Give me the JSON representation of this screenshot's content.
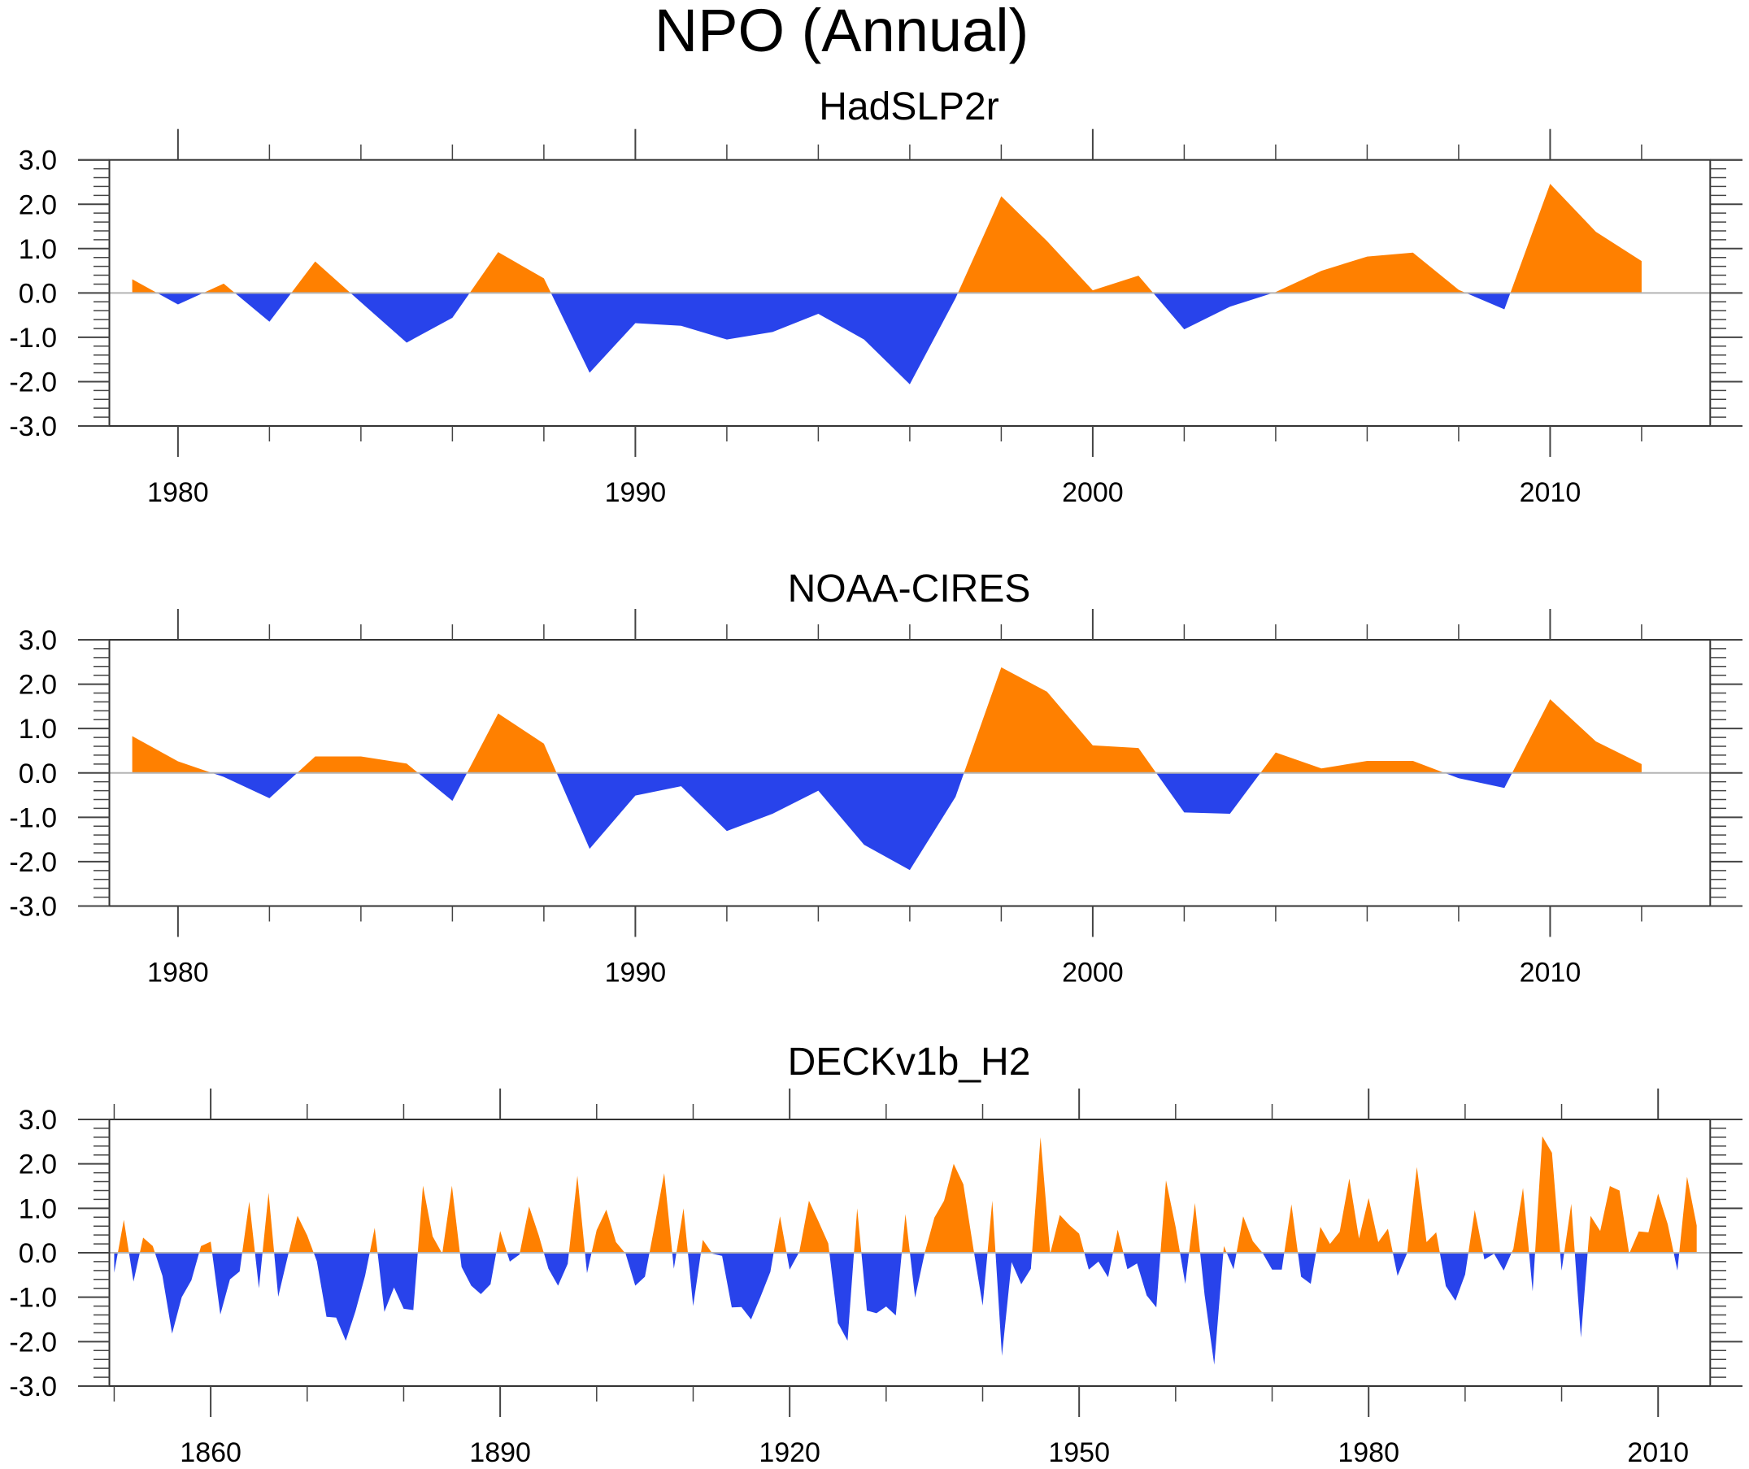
{
  "title": "NPO (Annual)",
  "colors": {
    "positive": "#ff8000",
    "negative": "#2843eb",
    "zero_line": "#b4b4b4",
    "axis": "#000000"
  },
  "chart_data": [
    {
      "type": "area",
      "title": "HadSLP2r",
      "xlabel": "",
      "ylabel": "",
      "xlim": [
        1978.5,
        2013.5
      ],
      "ylim": [
        -3.0,
        3.0
      ],
      "x_major_ticks": [
        1980,
        1990,
        2000,
        2010
      ],
      "x_tick_labels": [
        "1980",
        "1990",
        "2000",
        "2010"
      ],
      "x_minor_step": 2,
      "y_major_ticks": [
        3.0,
        2.0,
        1.0,
        0.0,
        -1.0,
        -2.0,
        -3.0
      ],
      "y_tick_labels": [
        "3.0",
        "2.0",
        "1.0",
        "0.0",
        "-1.0",
        "-2.0",
        "-3.0"
      ],
      "y_minor_step": 0.2,
      "grid": false,
      "reference_line": 0.0,
      "x_start": 1979,
      "values": [
        0.31,
        -0.26,
        0.21,
        -0.65,
        0.71,
        -0.21,
        -1.12,
        -0.56,
        0.92,
        0.33,
        -1.8,
        -0.68,
        -0.74,
        -1.05,
        -0.88,
        -0.47,
        -1.05,
        -2.06,
        -0.12,
        2.18,
        1.17,
        0.06,
        0.39,
        -0.82,
        -0.31,
        0.02,
        0.5,
        0.82,
        0.91,
        0.07,
        -0.37,
        2.46,
        1.38,
        0.72
      ]
    },
    {
      "type": "area",
      "title": "NOAA-CIRES",
      "xlabel": "",
      "ylabel": "",
      "xlim": [
        1978.5,
        2013.5
      ],
      "ylim": [
        -3.0,
        3.0
      ],
      "x_major_ticks": [
        1980,
        1990,
        2000,
        2010
      ],
      "x_tick_labels": [
        "1980",
        "1990",
        "2000",
        "2010"
      ],
      "x_minor_step": 2,
      "y_major_ticks": [
        3.0,
        2.0,
        1.0,
        0.0,
        -1.0,
        -2.0,
        -3.0
      ],
      "y_tick_labels": [
        "3.0",
        "2.0",
        "1.0",
        "0.0",
        "-1.0",
        "-2.0",
        "-3.0"
      ],
      "y_minor_step": 0.2,
      "grid": false,
      "reference_line": 0.0,
      "x_start": 1979,
      "values": [
        0.83,
        0.26,
        -0.09,
        -0.57,
        0.37,
        0.37,
        0.21,
        -0.63,
        1.34,
        0.66,
        -1.71,
        -0.51,
        -0.3,
        -1.31,
        -0.92,
        -0.4,
        -1.62,
        -2.19,
        -0.54,
        2.38,
        1.83,
        0.62,
        0.56,
        -0.89,
        -0.92,
        0.46,
        0.1,
        0.27,
        0.27,
        -0.12,
        -0.34,
        1.66,
        0.71,
        0.2
      ]
    },
    {
      "type": "area",
      "title": "DECKv1b_H2",
      "xlabel": "",
      "ylabel": "",
      "xlim": [
        1849.5,
        2015.4
      ],
      "ylim": [
        -3.0,
        3.0
      ],
      "x_major_ticks": [
        1860,
        1890,
        1920,
        1950,
        1980,
        2010
      ],
      "x_tick_labels": [
        "1860",
        "1890",
        "1920",
        "1950",
        "1980",
        "2010"
      ],
      "x_minor_step": 10,
      "y_major_ticks": [
        3.0,
        2.0,
        1.0,
        0.0,
        -1.0,
        -2.0,
        -3.0
      ],
      "y_tick_labels": [
        "3.0",
        "2.0",
        "1.0",
        "0.0",
        "-1.0",
        "-2.0",
        "-3.0"
      ],
      "y_minor_step": 0.2,
      "grid": false,
      "reference_line": 0.0,
      "x_start": 1850,
      "values": [
        -0.45,
        0.74,
        -0.65,
        0.34,
        0.15,
        -0.52,
        -1.82,
        -1.0,
        -0.62,
        0.15,
        0.25,
        -1.39,
        -0.6,
        -0.42,
        1.15,
        -0.8,
        1.35,
        -0.99,
        -0.07,
        0.83,
        0.39,
        -0.19,
        -1.44,
        -1.46,
        -1.98,
        -1.32,
        -0.52,
        0.56,
        -1.33,
        -0.78,
        -1.26,
        -1.29,
        1.51,
        0.37,
        -0.02,
        1.51,
        -0.32,
        -0.74,
        -0.93,
        -0.71,
        0.49,
        -0.2,
        -0.04,
        1.04,
        0.39,
        -0.36,
        -0.74,
        -0.25,
        1.73,
        -0.46,
        0.51,
        0.97,
        0.24,
        -0.02,
        -0.74,
        -0.54,
        0.6,
        1.79,
        -0.36,
        1.0,
        -1.2,
        0.29,
        -0.02,
        -0.07,
        -1.23,
        -1.22,
        -1.5,
        -0.98,
        -0.43,
        0.82,
        -0.38,
        0.02,
        1.17,
        0.7,
        0.21,
        -1.58,
        -1.98,
        1.0,
        -1.3,
        -1.36,
        -1.21,
        -1.41,
        0.87,
        -1.01,
        0.0,
        0.79,
        1.17,
        2.0,
        1.54,
        0.15,
        -1.19,
        1.17,
        -2.32,
        -0.21,
        -0.71,
        -0.36,
        2.6,
        -0.02,
        0.85,
        0.62,
        0.43,
        -0.38,
        -0.2,
        -0.55,
        0.52,
        -0.37,
        -0.24,
        -0.96,
        -1.23,
        1.63,
        0.58,
        -0.7,
        1.12,
        -0.95,
        -2.52,
        0.15,
        -0.37,
        0.82,
        0.26,
        0.0,
        -0.38,
        -0.38,
        1.09,
        -0.54,
        -0.7,
        0.58,
        0.2,
        0.47,
        1.67,
        0.32,
        1.23,
        0.24,
        0.54,
        -0.52,
        0.0,
        1.93,
        0.24,
        0.46,
        -0.75,
        -1.08,
        -0.49,
        0.96,
        -0.15,
        -0.02,
        -0.4,
        0.09,
        1.46,
        -0.87,
        2.62,
        2.25,
        -0.4,
        1.1,
        -1.91,
        0.83,
        0.49,
        1.5,
        1.4,
        -0.02,
        0.48,
        0.46,
        1.33,
        0.64,
        -0.4,
        1.71,
        0.61
      ]
    }
  ]
}
